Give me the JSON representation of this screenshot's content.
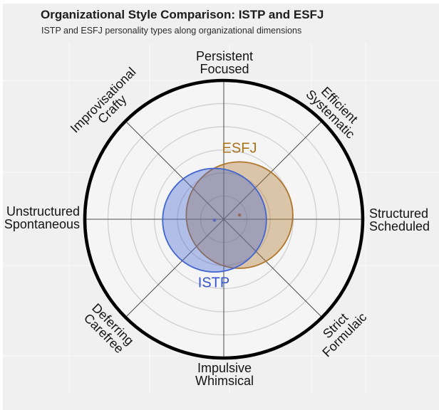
{
  "header": {
    "title": "Organizational Style Comparison: ISTP and ESFJ",
    "subtitle": "ISTP and ESFJ personality types along organizational dimensions"
  },
  "chart_data": {
    "type": "polar-comparison",
    "title": "Organizational Style Comparison: ISTP and ESFJ",
    "subtitle": "ISTP and ESFJ personality types along organizational dimensions",
    "radial_axis": {
      "min": 0,
      "max": 3,
      "rings": [
        0.5,
        1.0,
        1.5,
        2.0,
        2.5,
        3.0
      ],
      "tick_labels_shown": false
    },
    "axis_labels": [
      {
        "position": "top",
        "angle_deg": 90,
        "lines": [
          "Persistent",
          "Focused"
        ]
      },
      {
        "position": "top-right",
        "angle_deg": 45,
        "lines": [
          "Efficient",
          "Systematic"
        ]
      },
      {
        "position": "right",
        "angle_deg": 0,
        "lines": [
          "Structured",
          "Scheduled"
        ]
      },
      {
        "position": "bottom-right",
        "angle_deg": -45,
        "lines": [
          "Strict",
          "Formulaic"
        ]
      },
      {
        "position": "bottom",
        "angle_deg": -90,
        "lines": [
          "Impulsive",
          "Whimsical"
        ]
      },
      {
        "position": "bottom-left",
        "angle_deg": -135,
        "lines": [
          "Deferring",
          "Carefree"
        ]
      },
      {
        "position": "left",
        "angle_deg": 180,
        "lines": [
          "Unstructured",
          "Spontaneous"
        ]
      },
      {
        "position": "top-left",
        "angle_deg": 135,
        "lines": [
          "Improvisational",
          "Crafty"
        ]
      }
    ],
    "series": [
      {
        "name": "ESFJ",
        "center_x": 0.34,
        "center_y": 0.09,
        "radius": 1.15,
        "stroke_color": "#b0762b",
        "fill_opacity": 0.38,
        "label_color": "#a9721c",
        "dot_color": "#8b5f46"
      },
      {
        "name": "ISTP",
        "center_x": -0.2,
        "center_y": -0.02,
        "radius": 1.12,
        "stroke_color": "#4265cf",
        "fill_opacity": 0.38,
        "label_color": "#3554d1",
        "dot_color": "#4a5fc0"
      }
    ]
  },
  "colors": {
    "figure_background": "#f0f0f0",
    "polar_background": "#f5f5f5",
    "grid_ring": "#d2d2d2",
    "spoke": "#4f4f4f",
    "outer_ring": "#000000",
    "panel_grid": "rgba(255,255,255,0.65)"
  }
}
